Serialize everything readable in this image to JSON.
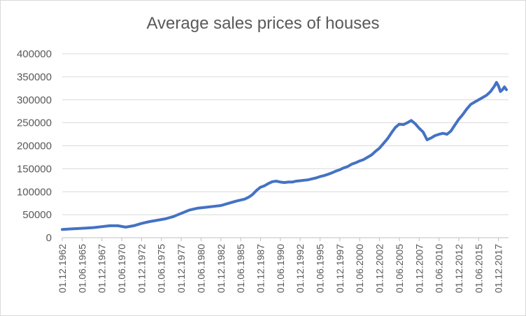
{
  "chart_data": {
    "type": "line",
    "title": "Average sales prices of houses",
    "xlabel": "",
    "ylabel": "",
    "ylim": [
      0,
      400000
    ],
    "y_ticks": [
      "0",
      "50000",
      "100000",
      "150000",
      "200000",
      "250000",
      "300000",
      "350000",
      "400000"
    ],
    "x_tick_labels": [
      "01.12.1962",
      "01.06.1965",
      "01.12.1967",
      "01.06.1970",
      "01.12.1972",
      "01.06.1975",
      "01.12.1977",
      "01.06.1980",
      "01.12.1982",
      "01.06.1985",
      "01.12.1987",
      "01.06.1990",
      "01.12.1992",
      "01.06.1995",
      "01.12.1997",
      "01.06.2000",
      "01.12.2002",
      "01.06.2005",
      "01.12.2007",
      "01.06.2010",
      "01.12.2012",
      "01.06.2015",
      "01.12.2017"
    ],
    "grid": "horizontal",
    "legend": "none",
    "series": [
      {
        "color": "#4472c4",
        "x": [
          "1962-12",
          "1963-12",
          "1964-12",
          "1965-12",
          "1966-12",
          "1967-12",
          "1968-12",
          "1969-12",
          "1970-12",
          "1971-12",
          "1972-12",
          "1973-12",
          "1974-12",
          "1975-12",
          "1976-12",
          "1977-12",
          "1978-12",
          "1979-12",
          "1980-12",
          "1981-12",
          "1982-12",
          "1983-12",
          "1984-12",
          "1985-12",
          "1986-06",
          "1986-12",
          "1987-06",
          "1987-12",
          "1988-06",
          "1988-12",
          "1989-06",
          "1989-12",
          "1990-06",
          "1990-12",
          "1991-06",
          "1991-12",
          "1992-06",
          "1992-12",
          "1993-06",
          "1993-12",
          "1994-06",
          "1994-12",
          "1995-06",
          "1995-12",
          "1996-06",
          "1996-12",
          "1997-06",
          "1997-12",
          "1998-06",
          "1998-12",
          "1999-06",
          "1999-12",
          "2000-06",
          "2000-12",
          "2001-06",
          "2001-12",
          "2002-06",
          "2002-12",
          "2003-06",
          "2003-12",
          "2004-06",
          "2004-12",
          "2005-06",
          "2005-12",
          "2006-06",
          "2006-12",
          "2007-06",
          "2007-12",
          "2008-06",
          "2008-12",
          "2009-06",
          "2009-12",
          "2010-06",
          "2010-12",
          "2011-06",
          "2011-12",
          "2012-06",
          "2012-12",
          "2013-06",
          "2013-12",
          "2014-06",
          "2014-12",
          "2015-06",
          "2015-12",
          "2016-06",
          "2016-12",
          "2017-06",
          "2017-09",
          "2017-12",
          "2018-03",
          "2018-06",
          "2018-09",
          "2018-12"
        ],
        "values": [
          18000,
          19000,
          20000,
          21000,
          22000,
          24000,
          26000,
          26000,
          23000,
          26000,
          31000,
          35000,
          38000,
          41000,
          46000,
          53000,
          60000,
          64000,
          66000,
          68000,
          70000,
          75000,
          80000,
          84000,
          88000,
          94000,
          103000,
          110000,
          113000,
          118000,
          122000,
          123000,
          121000,
          120000,
          121000,
          121000,
          123000,
          124000,
          125000,
          126000,
          128000,
          130000,
          133000,
          135000,
          138000,
          141000,
          145000,
          148000,
          152000,
          155000,
          160000,
          163000,
          167000,
          170000,
          175000,
          180000,
          188000,
          195000,
          205000,
          215000,
          228000,
          240000,
          247000,
          246000,
          250000,
          255000,
          248000,
          238000,
          230000,
          213000,
          217000,
          222000,
          225000,
          227000,
          225000,
          232000,
          245000,
          258000,
          268000,
          280000,
          290000,
          295000,
          300000,
          305000,
          310000,
          318000,
          330000,
          338000,
          330000,
          318000,
          322000,
          328000,
          322000
        ]
      }
    ]
  }
}
